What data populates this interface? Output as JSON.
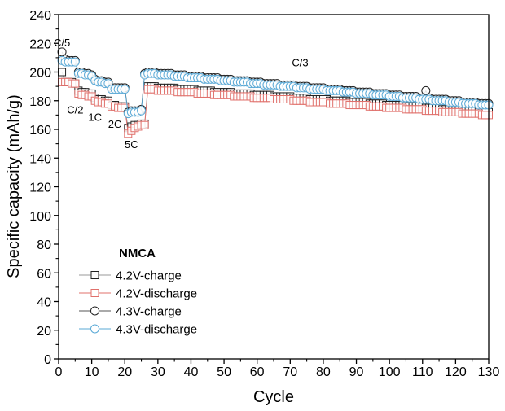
{
  "chart_data": {
    "type": "scatter",
    "xlabel": "Cycle",
    "ylabel": "Specific capacity (mAh/g)",
    "xlim": [
      0,
      130
    ],
    "ylim": [
      0,
      240
    ],
    "x_ticks": [
      0,
      10,
      20,
      30,
      40,
      50,
      60,
      70,
      80,
      90,
      100,
      110,
      120,
      130
    ],
    "y_ticks": [
      0,
      20,
      40,
      60,
      80,
      100,
      120,
      140,
      160,
      180,
      200,
      220,
      240
    ],
    "grid": false,
    "legend": {
      "title": "NMCA",
      "placement": "bottom-left"
    },
    "annotations": [
      {
        "text": "C/5",
        "x": 1,
        "y": 218
      },
      {
        "text": "C/2",
        "x": 5,
        "y": 171
      },
      {
        "text": "1C",
        "x": 11,
        "y": 166
      },
      {
        "text": "2C",
        "x": 17,
        "y": 161
      },
      {
        "text": "5C",
        "x": 22,
        "y": 147
      },
      {
        "text": "C/3",
        "x": 73,
        "y": 204
      }
    ],
    "series": [
      {
        "name": "4.2V-charge",
        "marker": "square",
        "color": "#222222",
        "line_color": "#999999",
        "values": [
          200,
          193,
          193,
          193,
          192,
          187,
          186,
          186,
          185,
          185,
          182,
          181,
          181,
          180,
          180,
          177,
          177,
          176,
          176,
          176,
          161,
          162,
          163,
          163,
          164,
          164,
          190,
          190,
          190,
          189,
          189,
          189,
          189,
          189,
          189,
          188,
          188,
          188,
          188,
          188,
          188,
          187,
          187,
          187,
          187,
          187,
          186,
          186,
          186,
          186,
          186,
          186,
          185,
          185,
          185,
          185,
          185,
          185,
          184,
          184,
          184,
          184,
          184,
          184,
          183,
          183,
          183,
          183,
          183,
          183,
          182,
          182,
          182,
          182,
          182,
          181,
          181,
          181,
          181,
          181,
          181,
          180,
          180,
          180,
          180,
          180,
          180,
          179,
          179,
          179,
          179,
          179,
          179,
          178,
          178,
          178,
          178,
          178,
          177,
          177,
          177,
          177,
          177,
          177,
          176,
          176,
          176,
          176,
          176,
          176,
          175,
          175,
          175,
          175,
          175,
          174,
          174,
          174,
          174,
          174,
          174,
          173,
          173,
          173,
          173,
          173,
          173,
          172,
          172,
          172
        ]
      },
      {
        "name": "4.2V-discharge",
        "marker": "square",
        "color": "#e0706b",
        "line_color": "#e0706b",
        "values": [
          193,
          193,
          193,
          192,
          192,
          185,
          184,
          184,
          183,
          183,
          180,
          179,
          179,
          178,
          178,
          176,
          176,
          175,
          175,
          175,
          157,
          159,
          161,
          162,
          163,
          163,
          188,
          188,
          188,
          187,
          187,
          187,
          187,
          187,
          187,
          186,
          186,
          186,
          186,
          186,
          186,
          185,
          185,
          185,
          185,
          185,
          184,
          184,
          184,
          184,
          184,
          184,
          183,
          183,
          183,
          183,
          183,
          183,
          182,
          182,
          182,
          182,
          182,
          182,
          181,
          181,
          181,
          181,
          181,
          181,
          180,
          180,
          180,
          180,
          180,
          179,
          179,
          179,
          179,
          179,
          179,
          178,
          178,
          178,
          178,
          178,
          178,
          177,
          177,
          177,
          177,
          177,
          177,
          176,
          176,
          176,
          176,
          176,
          175,
          175,
          175,
          175,
          175,
          175,
          174,
          174,
          174,
          174,
          174,
          174,
          173,
          173,
          173,
          173,
          173,
          172,
          172,
          172,
          172,
          172,
          172,
          171,
          171,
          171,
          171,
          171,
          171,
          170,
          170,
          170
        ]
      },
      {
        "name": "4.3V-charge",
        "marker": "circle",
        "color": "#222222",
        "line_color": "#555555",
        "values": [
          214,
          209,
          208,
          208,
          208,
          200,
          200,
          199,
          199,
          198,
          195,
          194,
          194,
          193,
          193,
          189,
          189,
          189,
          189,
          189,
          172,
          173,
          173,
          173,
          174,
          199,
          200,
          200,
          200,
          199,
          199,
          199,
          199,
          199,
          198,
          198,
          198,
          198,
          197,
          197,
          197,
          197,
          197,
          196,
          196,
          196,
          196,
          196,
          195,
          195,
          195,
          195,
          194,
          194,
          194,
          194,
          194,
          193,
          193,
          193,
          193,
          192,
          192,
          192,
          192,
          192,
          191,
          191,
          191,
          191,
          191,
          190,
          190,
          190,
          190,
          189,
          189,
          189,
          189,
          189,
          188,
          188,
          188,
          188,
          188,
          187,
          187,
          187,
          187,
          186,
          186,
          186,
          186,
          186,
          185,
          185,
          185,
          185,
          185,
          184,
          184,
          184,
          184,
          183,
          183,
          183,
          183,
          183,
          182,
          182,
          187,
          182,
          181,
          181,
          181,
          181,
          181,
          180,
          180,
          180,
          180,
          179,
          179,
          179,
          179,
          179,
          178,
          178,
          178,
          178
        ]
      },
      {
        "name": "4.3V-discharge",
        "marker": "circle",
        "color": "#5aa9d6",
        "line_color": "#5aa9d6",
        "values": [
          208,
          207,
          207,
          207,
          207,
          199,
          199,
          198,
          198,
          197,
          194,
          193,
          193,
          192,
          192,
          188,
          188,
          188,
          188,
          188,
          171,
          172,
          172,
          172,
          173,
          198,
          199,
          199,
          199,
          198,
          198,
          198,
          198,
          198,
          197,
          197,
          197,
          197,
          196,
          196,
          196,
          196,
          196,
          195,
          195,
          195,
          195,
          195,
          194,
          194,
          194,
          194,
          193,
          193,
          193,
          193,
          193,
          192,
          192,
          192,
          192,
          191,
          191,
          191,
          191,
          191,
          190,
          190,
          190,
          190,
          190,
          189,
          189,
          189,
          189,
          188,
          188,
          188,
          188,
          188,
          187,
          187,
          187,
          187,
          187,
          186,
          186,
          186,
          186,
          185,
          185,
          185,
          185,
          185,
          184,
          184,
          184,
          184,
          184,
          183,
          183,
          183,
          183,
          182,
          182,
          182,
          182,
          182,
          181,
          181,
          181,
          181,
          180,
          180,
          180,
          180,
          180,
          179,
          179,
          179,
          179,
          178,
          178,
          178,
          178,
          178,
          177,
          177,
          177,
          177
        ]
      }
    ]
  }
}
